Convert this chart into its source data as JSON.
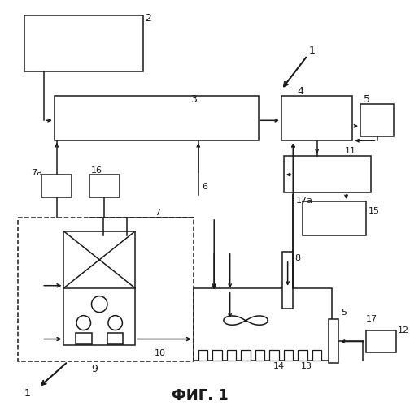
{
  "title": "ФИГ. 1",
  "bg_color": "#ffffff",
  "line_color": "#1a1a1a",
  "fig_width": 5.04,
  "fig_height": 5.0,
  "dpi": 100
}
